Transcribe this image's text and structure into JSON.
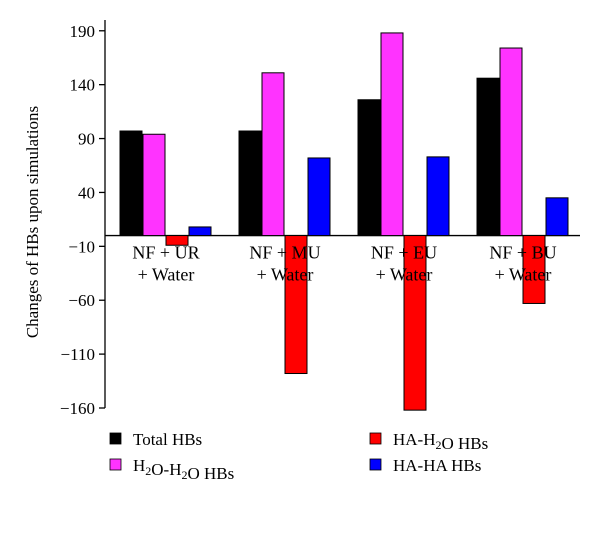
{
  "chart_data": {
    "type": "bar",
    "ylabel": "Changes of HBs upon simulations",
    "ylim": [
      -160,
      200
    ],
    "yticks": [
      190,
      140,
      90,
      40,
      -10,
      -60,
      -110,
      -160
    ],
    "categories": [
      [
        "NF + UR",
        "+ Water"
      ],
      [
        "NF + MU",
        "+ Water"
      ],
      [
        "NF + EU",
        "+ Water"
      ],
      [
        "NF + BU",
        "+ Water"
      ]
    ],
    "series": [
      {
        "name": "Total HBs",
        "color": "#000000",
        "values": [
          97,
          97,
          126,
          146
        ]
      },
      {
        "name": "H2O-H2O HBs",
        "color": "#ff33ff",
        "values": [
          94,
          151,
          188,
          174
        ]
      },
      {
        "name": "HA-H2O HBs",
        "color": "#ff0000",
        "values": [
          -9,
          -128,
          -162,
          -63
        ]
      },
      {
        "name": "HA-HA HBs",
        "color": "#0000ff",
        "values": [
          8,
          72,
          73,
          35
        ]
      }
    ],
    "legend": {
      "placement": "bottom",
      "items": [
        {
          "parts": [
            {
              "t": "Total HBs"
            }
          ]
        },
        {
          "parts": [
            {
              "t": "H"
            },
            {
              "t": "2",
              "sub": true
            },
            {
              "t": "O-H"
            },
            {
              "t": "2",
              "sub": true
            },
            {
              "t": "O HBs"
            }
          ]
        },
        {
          "parts": [
            {
              "t": "HA-H"
            },
            {
              "t": "2",
              "sub": true
            },
            {
              "t": "O HBs"
            }
          ]
        },
        {
          "parts": [
            {
              "t": "HA-HA HBs"
            }
          ]
        }
      ]
    }
  }
}
